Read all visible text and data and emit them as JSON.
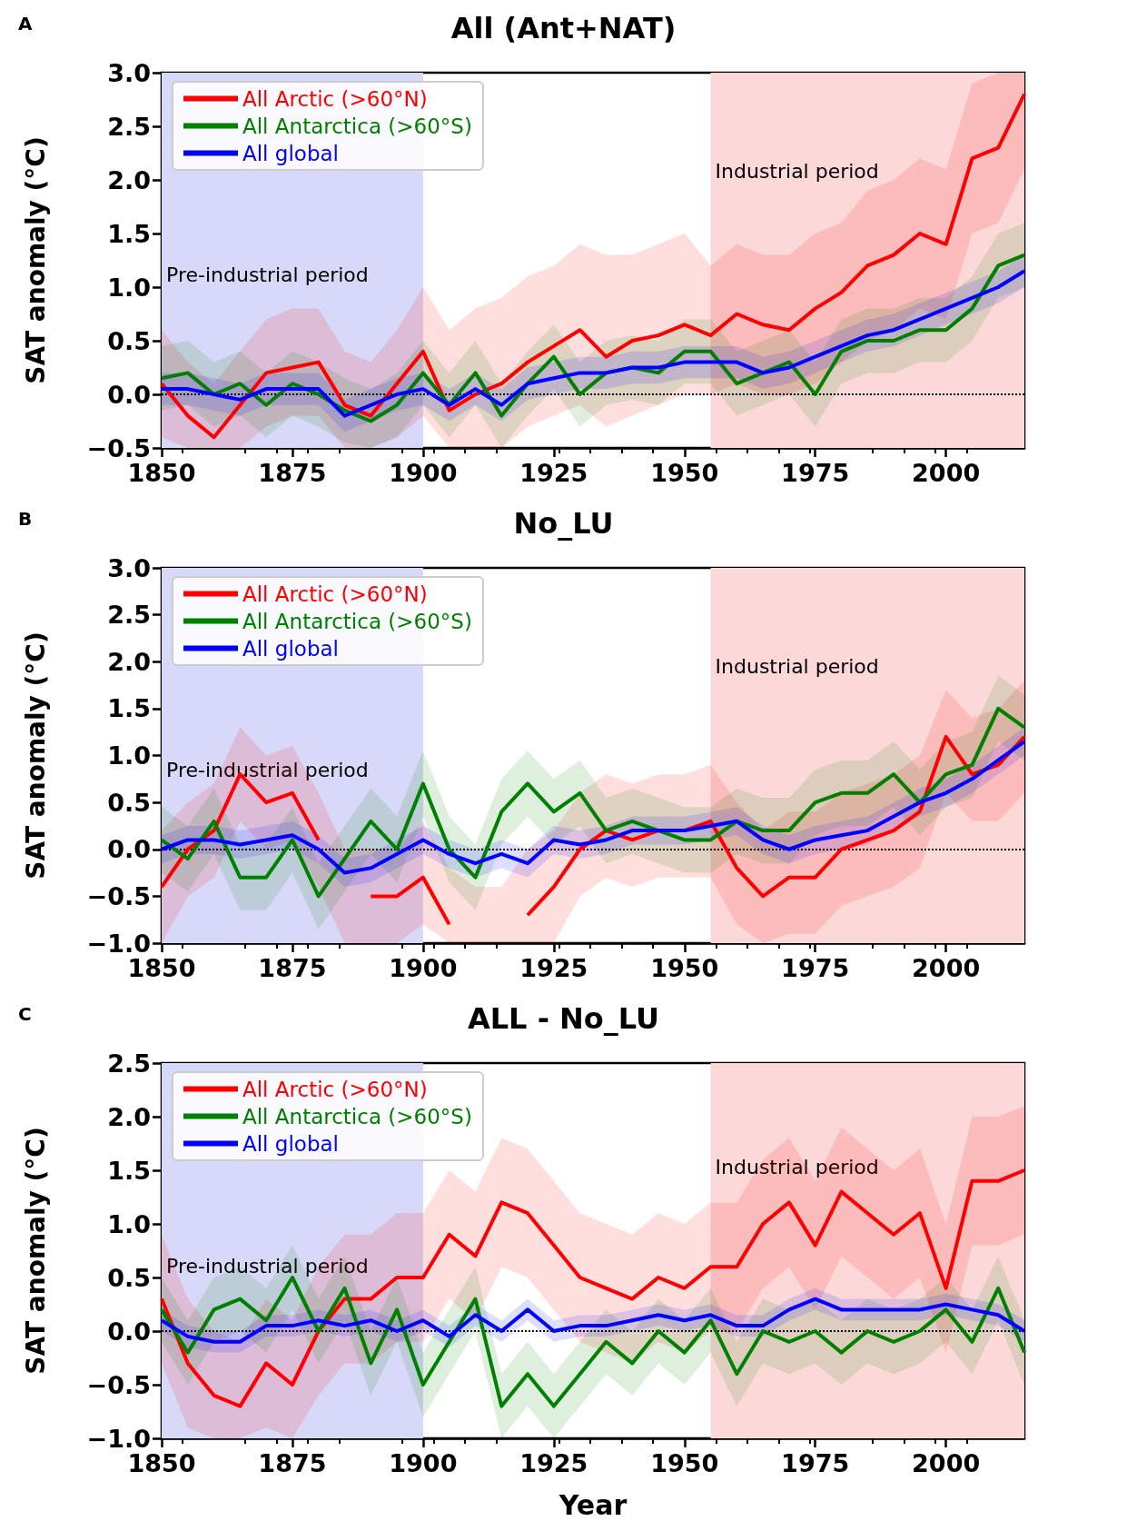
{
  "chart_data": [
    {
      "type": "line",
      "title": "All (Ant+NAT)",
      "ylabel": "SAT anomaly (°C)",
      "annotations": [
        "A"
      ],
      "x": [
        1850,
        1855,
        1860,
        1865,
        1870,
        1875,
        1880,
        1885,
        1890,
        1895,
        1900,
        1905,
        1910,
        1915,
        1920,
        1925,
        1930,
        1935,
        1940,
        1945,
        1950,
        1955,
        1960,
        1965,
        1970,
        1975,
        1980,
        1985,
        1990,
        1995,
        2000,
        2005,
        2010,
        2015
      ],
      "xlim": [
        1850,
        2015
      ],
      "xticks": [
        1850,
        1875,
        1900,
        1925,
        1950,
        1975,
        2000
      ],
      "ylim": [
        -0.5,
        3.0
      ],
      "yticks": [
        {
          "value": -0.5,
          "label": "−0.5"
        },
        {
          "value": 0,
          "label": "0.0"
        },
        {
          "value": 0.5,
          "label": "0.5"
        },
        {
          "value": 1,
          "label": "1.0"
        },
        {
          "value": 1.5,
          "label": "1.5"
        },
        {
          "value": 2,
          "label": "2.0"
        },
        {
          "value": 2.5,
          "label": "2.5"
        },
        {
          "value": 3,
          "label": "3.0"
        }
      ],
      "legend": "top left",
      "grid": false,
      "ref_lines": [
        {
          "axis": "y",
          "value": 0,
          "color": "#000000",
          "line_style": "dotted"
        }
      ],
      "bands": [
        {
          "axis": "x",
          "from": 1850,
          "to": 1900,
          "label": "Pre-industrial period",
          "color": "#d8d8f8"
        },
        {
          "axis": "x",
          "from": 1955,
          "to": 2015,
          "label": "Industrial period",
          "color": "#fdd8d8"
        }
      ],
      "series": [
        {
          "name": "All Arctic (>60°N)",
          "color": "#ff0000",
          "values": [
            0.1,
            -0.2,
            -0.4,
            -0.1,
            0.2,
            0.25,
            0.3,
            -0.1,
            -0.2,
            0.1,
            0.4,
            -0.15,
            0.0,
            0.1,
            0.3,
            0.45,
            0.6,
            0.35,
            0.5,
            0.55,
            0.65,
            0.55,
            0.75,
            0.65,
            0.6,
            0.8,
            0.95,
            1.2,
            1.3,
            1.5,
            1.4,
            2.2,
            2.3,
            2.8
          ],
          "upper": [
            0.6,
            0.3,
            0.1,
            0.4,
            0.7,
            0.8,
            0.8,
            0.4,
            0.3,
            0.6,
            1.0,
            0.6,
            0.8,
            0.9,
            1.1,
            1.2,
            1.4,
            1.3,
            1.3,
            1.4,
            1.5,
            1.2,
            1.4,
            1.3,
            1.3,
            1.5,
            1.6,
            1.9,
            2.0,
            2.2,
            2.1,
            2.9,
            3.0,
            3.0
          ],
          "lower": [
            -0.4,
            -0.5,
            -0.5,
            -0.5,
            -0.3,
            -0.2,
            -0.2,
            -0.5,
            -0.5,
            -0.4,
            -0.2,
            -0.5,
            -0.5,
            -0.5,
            -0.3,
            -0.2,
            -0.1,
            -0.3,
            -0.2,
            -0.1,
            0.0,
            0.0,
            0.1,
            0.0,
            0.0,
            0.1,
            0.3,
            0.5,
            0.6,
            0.8,
            0.7,
            1.5,
            1.6,
            2.1
          ]
        },
        {
          "name": "All Antarctica (>60°S)",
          "color": "#008000",
          "values": [
            0.15,
            0.2,
            0.0,
            0.1,
            -0.1,
            0.1,
            0.0,
            -0.15,
            -0.25,
            -0.1,
            0.2,
            -0.1,
            0.2,
            -0.2,
            0.1,
            0.35,
            0.0,
            0.2,
            0.25,
            0.2,
            0.4,
            0.4,
            0.1,
            0.2,
            0.3,
            0.0,
            0.4,
            0.5,
            0.5,
            0.6,
            0.6,
            0.8,
            1.2,
            1.3
          ],
          "upper": [
            0.45,
            0.5,
            0.3,
            0.4,
            0.2,
            0.4,
            0.3,
            0.15,
            0.05,
            0.2,
            0.5,
            0.2,
            0.5,
            0.1,
            0.4,
            0.65,
            0.3,
            0.5,
            0.55,
            0.5,
            0.7,
            0.7,
            0.4,
            0.5,
            0.6,
            0.3,
            0.7,
            0.8,
            0.8,
            0.9,
            0.9,
            1.1,
            1.5,
            1.6
          ],
          "lower": [
            -0.15,
            -0.1,
            -0.3,
            -0.2,
            -0.4,
            -0.2,
            -0.3,
            -0.45,
            -0.5,
            -0.4,
            -0.1,
            -0.4,
            -0.1,
            -0.5,
            -0.2,
            0.05,
            -0.3,
            -0.1,
            -0.05,
            -0.1,
            0.1,
            0.1,
            -0.2,
            -0.1,
            0.0,
            -0.3,
            0.1,
            0.2,
            0.2,
            0.3,
            0.3,
            0.5,
            0.9,
            1.0
          ]
        },
        {
          "name": "All global",
          "color": "#0000ff",
          "values": [
            0.05,
            0.05,
            0.0,
            -0.05,
            0.05,
            0.05,
            0.05,
            -0.2,
            -0.1,
            0.0,
            0.05,
            -0.1,
            0.05,
            -0.1,
            0.1,
            0.15,
            0.2,
            0.2,
            0.25,
            0.25,
            0.3,
            0.3,
            0.3,
            0.2,
            0.25,
            0.35,
            0.45,
            0.55,
            0.6,
            0.7,
            0.8,
            0.9,
            1.0,
            1.15
          ],
          "upper": [
            0.2,
            0.2,
            0.15,
            0.1,
            0.2,
            0.2,
            0.2,
            -0.05,
            0.05,
            0.15,
            0.2,
            0.05,
            0.2,
            0.05,
            0.25,
            0.3,
            0.35,
            0.35,
            0.4,
            0.4,
            0.45,
            0.45,
            0.45,
            0.35,
            0.4,
            0.5,
            0.6,
            0.7,
            0.75,
            0.85,
            0.95,
            1.05,
            1.15,
            1.3
          ],
          "lower": [
            -0.1,
            -0.1,
            -0.15,
            -0.2,
            -0.1,
            -0.1,
            -0.1,
            -0.35,
            -0.25,
            -0.15,
            -0.1,
            -0.25,
            -0.1,
            -0.25,
            -0.05,
            0.0,
            0.05,
            0.05,
            0.1,
            0.1,
            0.15,
            0.15,
            0.15,
            0.05,
            0.1,
            0.2,
            0.3,
            0.4,
            0.45,
            0.55,
            0.65,
            0.75,
            0.85,
            1.0
          ]
        }
      ]
    },
    {
      "type": "line",
      "title": "No_LU",
      "ylabel": "SAT anomaly (°C)",
      "annotations": [
        "B"
      ],
      "x": [
        1850,
        1855,
        1860,
        1865,
        1870,
        1875,
        1880,
        1885,
        1890,
        1895,
        1900,
        1905,
        1910,
        1915,
        1920,
        1925,
        1930,
        1935,
        1940,
        1945,
        1950,
        1955,
        1960,
        1965,
        1970,
        1975,
        1980,
        1985,
        1990,
        1995,
        2000,
        2005,
        2010,
        2015
      ],
      "xlim": [
        1850,
        2015
      ],
      "xticks": [
        1850,
        1875,
        1900,
        1925,
        1950,
        1975,
        2000
      ],
      "ylim": [
        -1.0,
        3.0
      ],
      "yticks": [
        {
          "value": -1,
          "label": "−1.0"
        },
        {
          "value": -0.5,
          "label": "−0.5"
        },
        {
          "value": 0,
          "label": "0.0"
        },
        {
          "value": 0.5,
          "label": "0.5"
        },
        {
          "value": 1,
          "label": "1.0"
        },
        {
          "value": 1.5,
          "label": "1.5"
        },
        {
          "value": 2,
          "label": "2.0"
        },
        {
          "value": 2.5,
          "label": "2.5"
        },
        {
          "value": 3,
          "label": "3.0"
        }
      ],
      "legend": "top left",
      "grid": false,
      "ref_lines": [
        {
          "axis": "y",
          "value": 0,
          "color": "#000000",
          "line_style": "dotted"
        }
      ],
      "bands": [
        {
          "axis": "x",
          "from": 1850,
          "to": 1900,
          "label": "Pre-industrial period",
          "color": "#d8d8f8"
        },
        {
          "axis": "x",
          "from": 1955,
          "to": 2015,
          "label": "Industrial period",
          "color": "#fdd8d8"
        }
      ],
      "series": [
        {
          "name": "All Arctic (>60°N)",
          "color": "#ff0000",
          "values": [
            -0.4,
            0.0,
            0.2,
            0.8,
            0.5,
            0.6,
            0.1,
            null,
            -0.5,
            -0.5,
            -0.3,
            -0.8,
            null,
            null,
            -0.7,
            -0.4,
            0.0,
            0.2,
            0.1,
            0.2,
            0.2,
            0.3,
            -0.2,
            -0.5,
            -0.3,
            -0.3,
            0.0,
            0.1,
            0.2,
            0.4,
            1.2,
            0.8,
            0.9,
            1.2
          ],
          "upper": [
            0.2,
            0.5,
            0.7,
            1.3,
            1.0,
            1.1,
            0.6,
            0.0,
            0.0,
            0.0,
            0.3,
            -0.2,
            -0.4,
            -0.4,
            0.0,
            0.2,
            0.6,
            0.8,
            0.7,
            0.8,
            0.8,
            0.9,
            0.5,
            0.2,
            0.4,
            0.4,
            0.6,
            0.7,
            0.8,
            1.0,
            1.7,
            1.4,
            1.5,
            1.8
          ],
          "lower": [
            -1.0,
            -0.5,
            -0.3,
            0.3,
            0.0,
            0.1,
            -0.4,
            -1.0,
            -1.0,
            -1.0,
            -0.8,
            -1.0,
            -1.0,
            -1.0,
            -1.0,
            -1.0,
            -0.5,
            -0.3,
            -0.4,
            -0.3,
            -0.3,
            -0.3,
            -0.8,
            -1.0,
            -0.9,
            -0.9,
            -0.6,
            -0.5,
            -0.4,
            -0.2,
            0.6,
            0.3,
            0.3,
            0.6
          ]
        },
        {
          "name": "All Antarctica (>60°S)",
          "color": "#008000",
          "values": [
            0.1,
            -0.1,
            0.3,
            -0.3,
            -0.3,
            0.1,
            -0.5,
            -0.1,
            0.3,
            0.0,
            0.7,
            0.0,
            -0.3,
            0.4,
            0.7,
            0.4,
            0.6,
            0.2,
            0.3,
            0.2,
            0.1,
            0.1,
            0.3,
            0.2,
            0.2,
            0.5,
            0.6,
            0.6,
            0.8,
            0.5,
            0.8,
            0.9,
            1.5,
            1.3
          ],
          "upper": [
            0.45,
            0.25,
            0.65,
            0.05,
            0.05,
            0.45,
            -0.15,
            0.25,
            0.65,
            0.35,
            1.05,
            0.35,
            0.05,
            0.75,
            1.05,
            0.75,
            0.95,
            0.55,
            0.65,
            0.55,
            0.45,
            0.45,
            0.65,
            0.55,
            0.55,
            0.85,
            0.95,
            0.95,
            1.15,
            0.85,
            1.15,
            1.25,
            1.85,
            1.65
          ],
          "lower": [
            -0.25,
            -0.45,
            -0.05,
            -0.65,
            -0.65,
            -0.25,
            -0.85,
            -0.45,
            -0.05,
            -0.35,
            0.35,
            -0.35,
            -0.65,
            0.05,
            0.35,
            0.05,
            0.25,
            -0.15,
            -0.05,
            -0.15,
            -0.25,
            -0.25,
            -0.05,
            -0.15,
            -0.15,
            0.15,
            0.25,
            0.25,
            0.45,
            0.15,
            0.45,
            0.55,
            1.15,
            0.95
          ]
        },
        {
          "name": "All global",
          "color": "#0000ff",
          "values": [
            0.0,
            0.1,
            0.1,
            0.05,
            0.1,
            0.15,
            0.0,
            -0.25,
            -0.2,
            -0.05,
            0.1,
            -0.05,
            -0.15,
            -0.05,
            -0.15,
            0.1,
            0.05,
            0.1,
            0.2,
            0.2,
            0.2,
            0.25,
            0.3,
            0.1,
            0.0,
            0.1,
            0.15,
            0.2,
            0.35,
            0.5,
            0.6,
            0.75,
            0.95,
            1.15
          ],
          "upper": [
            0.15,
            0.25,
            0.25,
            0.2,
            0.25,
            0.3,
            0.15,
            -0.1,
            -0.05,
            0.1,
            0.25,
            0.1,
            0.0,
            0.1,
            0.0,
            0.25,
            0.2,
            0.25,
            0.35,
            0.35,
            0.35,
            0.4,
            0.45,
            0.25,
            0.15,
            0.25,
            0.3,
            0.35,
            0.5,
            0.65,
            0.75,
            0.9,
            1.1,
            1.3
          ],
          "lower": [
            -0.15,
            -0.05,
            -0.05,
            -0.1,
            -0.05,
            0.0,
            -0.15,
            -0.4,
            -0.35,
            -0.2,
            -0.05,
            -0.2,
            -0.3,
            -0.2,
            -0.3,
            -0.05,
            -0.1,
            -0.05,
            0.05,
            0.05,
            0.05,
            0.1,
            0.15,
            -0.05,
            -0.15,
            -0.05,
            0.0,
            0.05,
            0.2,
            0.35,
            0.45,
            0.6,
            0.8,
            1.0
          ]
        }
      ]
    },
    {
      "type": "line",
      "title": "ALL - No_LU",
      "xlabel": "Year",
      "ylabel": "SAT anomaly (°C)",
      "annotations": [
        "C"
      ],
      "x": [
        1850,
        1855,
        1860,
        1865,
        1870,
        1875,
        1880,
        1885,
        1890,
        1895,
        1900,
        1905,
        1910,
        1915,
        1920,
        1925,
        1930,
        1935,
        1940,
        1945,
        1950,
        1955,
        1960,
        1965,
        1970,
        1975,
        1980,
        1985,
        1990,
        1995,
        2000,
        2005,
        2010,
        2015
      ],
      "xlim": [
        1850,
        2015
      ],
      "xticks": [
        1850,
        1875,
        1900,
        1925,
        1950,
        1975,
        2000
      ],
      "ylim": [
        -1.0,
        2.5
      ],
      "yticks": [
        {
          "value": -1,
          "label": "−1.0"
        },
        {
          "value": -0.5,
          "label": "−0.5"
        },
        {
          "value": 0,
          "label": "0.0"
        },
        {
          "value": 0.5,
          "label": "0.5"
        },
        {
          "value": 1,
          "label": "1.0"
        },
        {
          "value": 1.5,
          "label": "1.5"
        },
        {
          "value": 2,
          "label": "2.0"
        },
        {
          "value": 2.5,
          "label": "2.5"
        }
      ],
      "legend": "top left",
      "grid": false,
      "ref_lines": [
        {
          "axis": "y",
          "value": 0,
          "color": "#000000",
          "line_style": "dotted"
        }
      ],
      "bands": [
        {
          "axis": "x",
          "from": 1850,
          "to": 1900,
          "label": "Pre-industrial period",
          "color": "#d8d8f8"
        },
        {
          "axis": "x",
          "from": 1955,
          "to": 2015,
          "label": "Industrial period",
          "color": "#fdd8d8"
        }
      ],
      "series": [
        {
          "name": "All Arctic (>60°N)",
          "color": "#ff0000",
          "values": [
            0.3,
            -0.3,
            -0.6,
            -0.7,
            -0.3,
            -0.5,
            0.0,
            0.3,
            0.3,
            0.5,
            0.5,
            0.9,
            0.7,
            1.2,
            1.1,
            0.8,
            0.5,
            0.4,
            0.3,
            0.5,
            0.4,
            0.6,
            0.6,
            1.0,
            1.2,
            0.8,
            1.3,
            1.1,
            0.9,
            1.1,
            0.4,
            1.4,
            1.4,
            1.5
          ],
          "upper": [
            0.9,
            0.3,
            0.0,
            -0.1,
            0.3,
            0.1,
            0.6,
            0.9,
            0.9,
            1.1,
            1.1,
            1.5,
            1.3,
            1.8,
            1.7,
            1.4,
            1.1,
            1.0,
            0.9,
            1.1,
            1.0,
            1.2,
            1.2,
            1.6,
            1.8,
            1.4,
            1.9,
            1.7,
            1.5,
            1.7,
            1.0,
            2.0,
            2.0,
            2.1
          ],
          "lower": [
            -0.3,
            -0.9,
            -1.0,
            -1.0,
            -0.9,
            -1.0,
            -0.6,
            -0.3,
            -0.3,
            -0.1,
            -0.1,
            0.3,
            0.1,
            0.6,
            0.5,
            0.2,
            -0.1,
            -0.2,
            -0.3,
            -0.1,
            -0.2,
            0.0,
            0.0,
            0.4,
            0.6,
            0.2,
            0.7,
            0.5,
            0.3,
            0.5,
            -0.2,
            0.8,
            0.8,
            0.9
          ]
        },
        {
          "name": "All Antarctica (>60°S)",
          "color": "#008000",
          "values": [
            0.2,
            -0.2,
            0.2,
            0.3,
            0.1,
            0.5,
            0.0,
            0.4,
            -0.3,
            0.2,
            -0.5,
            -0.1,
            0.3,
            -0.7,
            -0.4,
            -0.7,
            -0.4,
            -0.1,
            -0.3,
            0.0,
            -0.2,
            0.1,
            -0.4,
            0.0,
            -0.1,
            0.0,
            -0.2,
            0.0,
            -0.1,
            0.0,
            0.2,
            -0.1,
            0.4,
            -0.2
          ],
          "upper": [
            0.5,
            0.1,
            0.5,
            0.6,
            0.4,
            0.8,
            0.3,
            0.7,
            0.0,
            0.5,
            -0.2,
            0.2,
            0.6,
            -0.4,
            -0.1,
            -0.4,
            -0.1,
            0.2,
            0.0,
            0.3,
            0.1,
            0.4,
            -0.1,
            0.3,
            0.2,
            0.3,
            0.1,
            0.3,
            0.2,
            0.3,
            0.5,
            0.2,
            0.7,
            0.1
          ],
          "lower": [
            -0.1,
            -0.5,
            -0.1,
            0.0,
            -0.2,
            0.2,
            -0.3,
            0.1,
            -0.6,
            -0.1,
            -0.8,
            -0.4,
            0.0,
            -1.0,
            -0.7,
            -1.0,
            -0.7,
            -0.4,
            -0.6,
            -0.3,
            -0.5,
            -0.2,
            -0.7,
            -0.3,
            -0.4,
            -0.3,
            -0.5,
            -0.3,
            -0.4,
            -0.3,
            -0.1,
            -0.4,
            0.1,
            -0.5
          ]
        },
        {
          "name": "All global",
          "color": "#0000ff",
          "values": [
            0.1,
            -0.05,
            -0.1,
            -0.1,
            0.05,
            0.05,
            0.1,
            0.05,
            0.1,
            0.0,
            0.1,
            -0.05,
            0.15,
            0.0,
            0.2,
            0.0,
            0.05,
            0.05,
            0.1,
            0.15,
            0.1,
            0.15,
            0.05,
            0.05,
            0.2,
            0.3,
            0.2,
            0.2,
            0.2,
            0.2,
            0.25,
            0.2,
            0.15,
            0.0
          ],
          "upper": [
            0.2,
            0.05,
            0.0,
            0.0,
            0.15,
            0.15,
            0.2,
            0.15,
            0.2,
            0.1,
            0.2,
            0.05,
            0.25,
            0.1,
            0.3,
            0.1,
            0.15,
            0.15,
            0.2,
            0.25,
            0.2,
            0.25,
            0.15,
            0.15,
            0.3,
            0.4,
            0.3,
            0.3,
            0.3,
            0.3,
            0.35,
            0.3,
            0.25,
            0.1
          ],
          "lower": [
            0.0,
            -0.15,
            -0.2,
            -0.2,
            -0.05,
            -0.05,
            0.0,
            -0.05,
            0.0,
            -0.1,
            0.0,
            -0.15,
            0.05,
            -0.1,
            0.1,
            -0.1,
            -0.05,
            -0.05,
            0.0,
            0.05,
            0.0,
            0.05,
            -0.05,
            -0.05,
            0.1,
            0.2,
            0.1,
            0.1,
            0.1,
            0.1,
            0.15,
            0.1,
            0.05,
            -0.1
          ]
        }
      ]
    }
  ]
}
